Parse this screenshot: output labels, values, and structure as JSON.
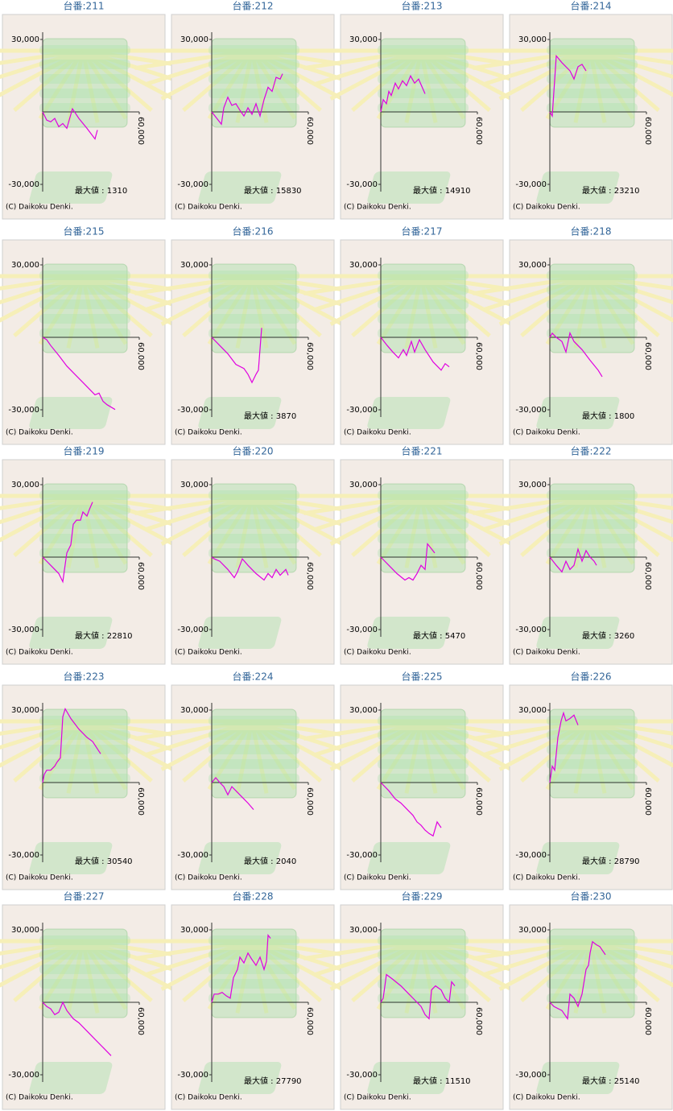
{
  "chart_data": [
    {
      "type": "line",
      "title": "台番:211",
      "color": "#e000e0",
      "xlim": [
        0,
        60000
      ],
      "ylim": [
        -33000,
        33000
      ],
      "yticks": [
        {
          "value": 30000,
          "label": "30,000"
        },
        {
          "value": -30000,
          "label": "-30,000"
        }
      ],
      "xticks": [
        {
          "value": 60000,
          "label": "60,000"
        }
      ],
      "max_label": "最大値 : 1310",
      "copyright": "(C) Daikoku Denki.",
      "x": [
        0,
        2500,
        5000,
        7500,
        10000,
        12500,
        15000,
        18500,
        22500,
        27500,
        32500,
        34000
      ],
      "values": [
        0,
        -3400,
        -4100,
        -2700,
        -6100,
        -4800,
        -6800,
        1300,
        -2700,
        -6800,
        -11200,
        -7500
      ]
    },
    {
      "type": "line",
      "title": "台番:212",
      "color": "#e000e0",
      "xlim": [
        0,
        60000
      ],
      "ylim": [
        -33000,
        33000
      ],
      "yticks": [
        {
          "value": 30000,
          "label": "30,000"
        },
        {
          "value": -30000,
          "label": "-30,000"
        }
      ],
      "xticks": [
        {
          "value": 60000,
          "label": "60,000"
        }
      ],
      "max_label": "最大値 : 15830",
      "copyright": "(C) Daikoku Denki.",
      "x": [
        0,
        6000,
        7500,
        10000,
        12500,
        15000,
        17500,
        20000,
        22500,
        25000,
        27500,
        30000,
        32500,
        35000,
        37500,
        40000,
        42500,
        44000
      ],
      "values": [
        0,
        -5100,
        1700,
        6100,
        2700,
        3400,
        700,
        -1700,
        1700,
        -1000,
        3400,
        -1700,
        5100,
        10200,
        8500,
        14300,
        13600,
        15800
      ]
    },
    {
      "type": "line",
      "title": "台番:213",
      "color": "#e000e0",
      "xlim": [
        0,
        60000
      ],
      "ylim": [
        -33000,
        33000
      ],
      "yticks": [
        {
          "value": 30000,
          "label": "30,000"
        },
        {
          "value": -30000,
          "label": "-30,000"
        }
      ],
      "xticks": [
        {
          "value": 60000,
          "label": "60,000"
        }
      ],
      "max_label": "最大値 : 14910",
      "copyright": "(C) Daikoku Denki.",
      "x": [
        0,
        1500,
        3500,
        5000,
        6500,
        9000,
        11000,
        13500,
        16000,
        18500,
        21000,
        23500,
        27500
      ],
      "values": [
        0,
        5100,
        3400,
        8500,
        6800,
        11900,
        9500,
        12900,
        10900,
        14900,
        11900,
        13600,
        7500
      ]
    },
    {
      "type": "line",
      "title": "台番:214",
      "color": "#e000e0",
      "xlim": [
        0,
        60000
      ],
      "ylim": [
        -33000,
        33000
      ],
      "yticks": [
        {
          "value": 30000,
          "label": "30,000"
        },
        {
          "value": -30000,
          "label": "-30,000"
        }
      ],
      "xticks": [
        {
          "value": 60000,
          "label": "60,000"
        }
      ],
      "max_label": "最大値 : 23210",
      "copyright": "(C) Daikoku Denki.",
      "x": [
        0,
        1500,
        4000,
        7500,
        12500,
        15000,
        17500,
        20000,
        22500
      ],
      "values": [
        0,
        -1700,
        23200,
        20400,
        17000,
        13600,
        18700,
        19700,
        17000
      ]
    },
    {
      "type": "line",
      "title": "台番:215",
      "color": "#e000e0",
      "xlim": [
        0,
        60000
      ],
      "ylim": [
        -33000,
        33000
      ],
      "yticks": [
        {
          "value": 30000,
          "label": "30,000"
        },
        {
          "value": -30000,
          "label": "-30,000"
        }
      ],
      "xticks": [
        {
          "value": 60000,
          "label": "60,000"
        }
      ],
      "copyright": "(C) Daikoku Denki.",
      "x": [
        0,
        2500,
        5000,
        10000,
        15000,
        20000,
        25000,
        30000,
        32500,
        35000,
        37500,
        40000,
        45000
      ],
      "values": [
        0,
        -1000,
        -3400,
        -7500,
        -11900,
        -15300,
        -18700,
        -22100,
        -23800,
        -23100,
        -26500,
        -27900,
        -29900
      ]
    },
    {
      "type": "line",
      "title": "台番:216",
      "color": "#e000e0",
      "xlim": [
        0,
        60000
      ],
      "ylim": [
        -33000,
        33000
      ],
      "yticks": [
        {
          "value": 30000,
          "label": "30,000"
        },
        {
          "value": -30000,
          "label": "-30,000"
        }
      ],
      "xticks": [
        {
          "value": 60000,
          "label": "60,000"
        }
      ],
      "max_label": "最大値 : 3870",
      "copyright": "(C) Daikoku Denki.",
      "x": [
        0,
        5000,
        10000,
        15000,
        20000,
        22500,
        25000,
        27500,
        29000,
        31000
      ],
      "values": [
        0,
        -3400,
        -6800,
        -11200,
        -12900,
        -15300,
        -18700,
        -15300,
        -13600,
        3900
      ]
    },
    {
      "type": "line",
      "title": "台番:217",
      "color": "#e000e0",
      "xlim": [
        0,
        60000
      ],
      "ylim": [
        -33000,
        33000
      ],
      "yticks": [
        {
          "value": 30000,
          "label": "30,000"
        },
        {
          "value": -30000,
          "label": "-30,000"
        }
      ],
      "xticks": [
        {
          "value": 60000,
          "label": "60,000"
        }
      ],
      "copyright": "(C) Daikoku Denki.",
      "x": [
        0,
        4000,
        7500,
        11000,
        14000,
        16000,
        19000,
        21000,
        24000,
        27500,
        32500,
        37500,
        40000,
        42500
      ],
      "values": [
        0,
        -3400,
        -6100,
        -8500,
        -5100,
        -7500,
        -1700,
        -6100,
        -1000,
        -5100,
        -10200,
        -13600,
        -10900,
        -12200
      ]
    },
    {
      "type": "line",
      "title": "台番:218",
      "color": "#e000e0",
      "xlim": [
        0,
        60000
      ],
      "ylim": [
        -33000,
        33000
      ],
      "yticks": [
        {
          "value": 30000,
          "label": "30,000"
        },
        {
          "value": -30000,
          "label": "-30,000"
        }
      ],
      "xticks": [
        {
          "value": 60000,
          "label": "60,000"
        }
      ],
      "max_label": "最大値 : 1800",
      "copyright": "(C) Daikoku Denki.",
      "x": [
        0,
        1500,
        4000,
        7500,
        10000,
        12500,
        15000,
        20000,
        25000,
        30000,
        32500
      ],
      "values": [
        0,
        1700,
        0,
        -1700,
        -6100,
        1800,
        -1700,
        -5100,
        -9500,
        -13600,
        -16300
      ]
    },
    {
      "type": "line",
      "title": "台番:219",
      "color": "#e000e0",
      "xlim": [
        0,
        60000
      ],
      "ylim": [
        -33000,
        33000
      ],
      "yticks": [
        {
          "value": 30000,
          "label": "30,000"
        },
        {
          "value": -30000,
          "label": "-30,000"
        }
      ],
      "xticks": [
        {
          "value": 60000,
          "label": "60,000"
        }
      ],
      "max_label": "最大値 : 22810",
      "copyright": "(C) Daikoku Denki.",
      "x": [
        0,
        5000,
        10000,
        12500,
        15000,
        17500,
        19000,
        21000,
        23500,
        25000,
        27500,
        29000,
        31000
      ],
      "values": [
        0,
        -3400,
        -6800,
        -10200,
        1700,
        5100,
        13600,
        15300,
        15300,
        18700,
        17000,
        19700,
        22800
      ]
    },
    {
      "type": "line",
      "title": "台番:220",
      "color": "#e000e0",
      "xlim": [
        0,
        60000
      ],
      "ylim": [
        -33000,
        33000
      ],
      "yticks": [
        {
          "value": 30000,
          "label": "30,000"
        },
        {
          "value": -30000,
          "label": "-30,000"
        }
      ],
      "xticks": [
        {
          "value": 60000,
          "label": "60,000"
        }
      ],
      "copyright": "(C) Daikoku Denki.",
      "x": [
        0,
        1500,
        5000,
        10000,
        14000,
        16000,
        19000,
        22500,
        27500,
        32500,
        35000,
        37500,
        40000,
        42500,
        46000,
        47500
      ],
      "values": [
        0,
        -700,
        -1700,
        -5100,
        -8500,
        -6100,
        -700,
        -3400,
        -6800,
        -9500,
        -6800,
        -8500,
        -5100,
        -7500,
        -5100,
        -7500
      ]
    },
    {
      "type": "line",
      "title": "台番:221",
      "color": "#e000e0",
      "xlim": [
        0,
        60000
      ],
      "ylim": [
        -33000,
        33000
      ],
      "yticks": [
        {
          "value": 30000,
          "label": "30,000"
        },
        {
          "value": -30000,
          "label": "-30,000"
        }
      ],
      "xticks": [
        {
          "value": 60000,
          "label": "60,000"
        }
      ],
      "max_label": "最大値 : 5470",
      "copyright": "(C) Daikoku Denki.",
      "x": [
        0,
        5000,
        10000,
        15000,
        17500,
        20000,
        22500,
        25000,
        27500,
        29000,
        31500,
        33500
      ],
      "values": [
        0,
        -3400,
        -6800,
        -9500,
        -8500,
        -9500,
        -6800,
        -3400,
        -5100,
        5500,
        3400,
        1700
      ]
    },
    {
      "type": "line",
      "title": "台番:222",
      "color": "#e000e0",
      "xlim": [
        0,
        60000
      ],
      "ylim": [
        -33000,
        33000
      ],
      "yticks": [
        {
          "value": 30000,
          "label": "30,000"
        },
        {
          "value": -30000,
          "label": "-30,000"
        }
      ],
      "xticks": [
        {
          "value": 60000,
          "label": "60,000"
        }
      ],
      "max_label": "最大値 : 3260",
      "copyright": "(C) Daikoku Denki.",
      "x": [
        0,
        4000,
        7500,
        10000,
        12500,
        15000,
        17500,
        20000,
        22500,
        25000,
        27500,
        29000
      ],
      "values": [
        0,
        -3400,
        -6100,
        -1700,
        -5100,
        -3400,
        3300,
        -1700,
        2700,
        0,
        -1700,
        -3400
      ]
    },
    {
      "type": "line",
      "title": "台番:223",
      "color": "#e000e0",
      "xlim": [
        0,
        60000
      ],
      "ylim": [
        -33000,
        33000
      ],
      "yticks": [
        {
          "value": 30000,
          "label": "30,000"
        },
        {
          "value": -30000,
          "label": "-30,000"
        }
      ],
      "xticks": [
        {
          "value": 60000,
          "label": "60,000"
        }
      ],
      "max_label": "最大値 : 30540",
      "copyright": "(C) Daikoku Denki.",
      "x": [
        0,
        1000,
        2500,
        5000,
        7500,
        9000,
        11000,
        12500,
        14000,
        17500,
        22500,
        25000,
        27500,
        31000,
        36000
      ],
      "values": [
        0,
        3400,
        5100,
        5100,
        6800,
        8500,
        10200,
        27200,
        30500,
        26500,
        22100,
        20400,
        18700,
        17000,
        11900
      ]
    },
    {
      "type": "line",
      "title": "台番:224",
      "color": "#e000e0",
      "xlim": [
        0,
        60000
      ],
      "ylim": [
        -33000,
        33000
      ],
      "yticks": [
        {
          "value": 30000,
          "label": "30,000"
        },
        {
          "value": -30000,
          "label": "-30,000"
        }
      ],
      "xticks": [
        {
          "value": 60000,
          "label": "60,000"
        }
      ],
      "max_label": "最大値 : 2040",
      "copyright": "(C) Daikoku Denki.",
      "x": [
        0,
        2500,
        5000,
        7500,
        10000,
        12500,
        15000,
        17500,
        20000,
        22500,
        26000
      ],
      "values": [
        0,
        2000,
        0,
        -1700,
        -5100,
        -1700,
        -3400,
        -5100,
        -6800,
        -8500,
        -11200
      ]
    },
    {
      "type": "line",
      "title": "台番:225",
      "color": "#e000e0",
      "xlim": [
        0,
        60000
      ],
      "ylim": [
        -33000,
        33000
      ],
      "yticks": [
        {
          "value": 30000,
          "label": "30,000"
        },
        {
          "value": -30000,
          "label": "-30,000"
        }
      ],
      "xticks": [
        {
          "value": 60000,
          "label": "60,000"
        }
      ],
      "copyright": "(C) Daikoku Denki.",
      "x": [
        0,
        5000,
        9000,
        12500,
        15000,
        17500,
        20000,
        22500,
        25000,
        27500,
        30000,
        32500,
        35000,
        37500
      ],
      "values": [
        0,
        -3400,
        -6800,
        -8500,
        -10200,
        -11900,
        -13600,
        -16300,
        -17700,
        -19700,
        -21100,
        -22100,
        -16300,
        -18700
      ]
    },
    {
      "type": "line",
      "title": "台番:226",
      "color": "#e000e0",
      "xlim": [
        0,
        60000
      ],
      "ylim": [
        -33000,
        33000
      ],
      "yticks": [
        {
          "value": 30000,
          "label": "30,000"
        },
        {
          "value": -30000,
          "label": "-30,000"
        }
      ],
      "xticks": [
        {
          "value": 60000,
          "label": "60,000"
        }
      ],
      "max_label": "最大値 : 28790",
      "copyright": "(C) Daikoku Denki.",
      "x": [
        0,
        1500,
        3000,
        5000,
        7000,
        8500,
        10000,
        12500,
        15000,
        17500
      ],
      "values": [
        0,
        6800,
        5100,
        18700,
        25500,
        28800,
        25500,
        26500,
        27900,
        23800
      ]
    },
    {
      "type": "line",
      "title": "台番:227",
      "color": "#e000e0",
      "xlim": [
        0,
        60000
      ],
      "ylim": [
        -33000,
        33000
      ],
      "yticks": [
        {
          "value": 30000,
          "label": "30,000"
        },
        {
          "value": -30000,
          "label": "-30,000"
        }
      ],
      "xticks": [
        {
          "value": 60000,
          "label": "60,000"
        }
      ],
      "copyright": "(C) Daikoku Denki.",
      "x": [
        0,
        2500,
        5000,
        7500,
        10000,
        12500,
        15000,
        19000,
        22500,
        27500,
        32500,
        37500,
        42500
      ],
      "values": [
        0,
        -1700,
        -2700,
        -5100,
        -4100,
        0,
        -3400,
        -6800,
        -8500,
        -11900,
        -15300,
        -18700,
        -22100
      ]
    },
    {
      "type": "line",
      "title": "台番:228",
      "color": "#e000e0",
      "xlim": [
        0,
        60000
      ],
      "ylim": [
        -33000,
        33000
      ],
      "yticks": [
        {
          "value": 30000,
          "label": "30,000"
        },
        {
          "value": -30000,
          "label": "-30,000"
        }
      ],
      "xticks": [
        {
          "value": 60000,
          "label": "60,000"
        }
      ],
      "max_label": "最大値 : 27790",
      "copyright": "(C) Daikoku Denki.",
      "x": [
        0,
        1500,
        4000,
        6500,
        9000,
        11500,
        13500,
        16000,
        17500,
        20000,
        22500,
        25000,
        27500,
        30000,
        32500,
        34000,
        35000,
        36500
      ],
      "values": [
        0,
        3400,
        3400,
        4100,
        2700,
        1700,
        10200,
        13600,
        18700,
        16300,
        20400,
        17700,
        15300,
        18700,
        13600,
        17000,
        27800,
        26500
      ]
    },
    {
      "type": "line",
      "title": "台番:229",
      "color": "#e000e0",
      "xlim": [
        0,
        60000
      ],
      "ylim": [
        -33000,
        33000
      ],
      "yticks": [
        {
          "value": 30000,
          "label": "30,000"
        },
        {
          "value": -30000,
          "label": "-30,000"
        }
      ],
      "xticks": [
        {
          "value": 60000,
          "label": "60,000"
        }
      ],
      "max_label": "最大値 : 11510",
      "copyright": "(C) Daikoku Denki.",
      "x": [
        0,
        1500,
        3500,
        7500,
        12500,
        17500,
        22500,
        25000,
        27500,
        30000,
        31500,
        34000,
        37500,
        40000,
        42500,
        44000,
        46000
      ],
      "values": [
        0,
        1700,
        11500,
        9500,
        6800,
        3400,
        0,
        -1700,
        -5100,
        -6800,
        5100,
        6800,
        5100,
        1700,
        0,
        8500,
        6800
      ]
    },
    {
      "type": "line",
      "title": "台番:230",
      "color": "#e000e0",
      "xlim": [
        0,
        60000
      ],
      "ylim": [
        -33000,
        33000
      ],
      "yticks": [
        {
          "value": 30000,
          "label": "30,000"
        },
        {
          "value": -30000,
          "label": "-30,000"
        }
      ],
      "xticks": [
        {
          "value": 60000,
          "label": "60,000"
        }
      ],
      "max_label": "最大値 : 25140",
      "copyright": "(C) Daikoku Denki.",
      "x": [
        0,
        2500,
        7500,
        11000,
        12500,
        15000,
        17500,
        20000,
        22500,
        24000,
        25000,
        26500,
        29000,
        31000,
        34500
      ],
      "values": [
        0,
        -1700,
        -3400,
        -6800,
        3400,
        1700,
        -1700,
        3400,
        13600,
        15300,
        20400,
        25100,
        23800,
        23100,
        19700
      ]
    }
  ]
}
